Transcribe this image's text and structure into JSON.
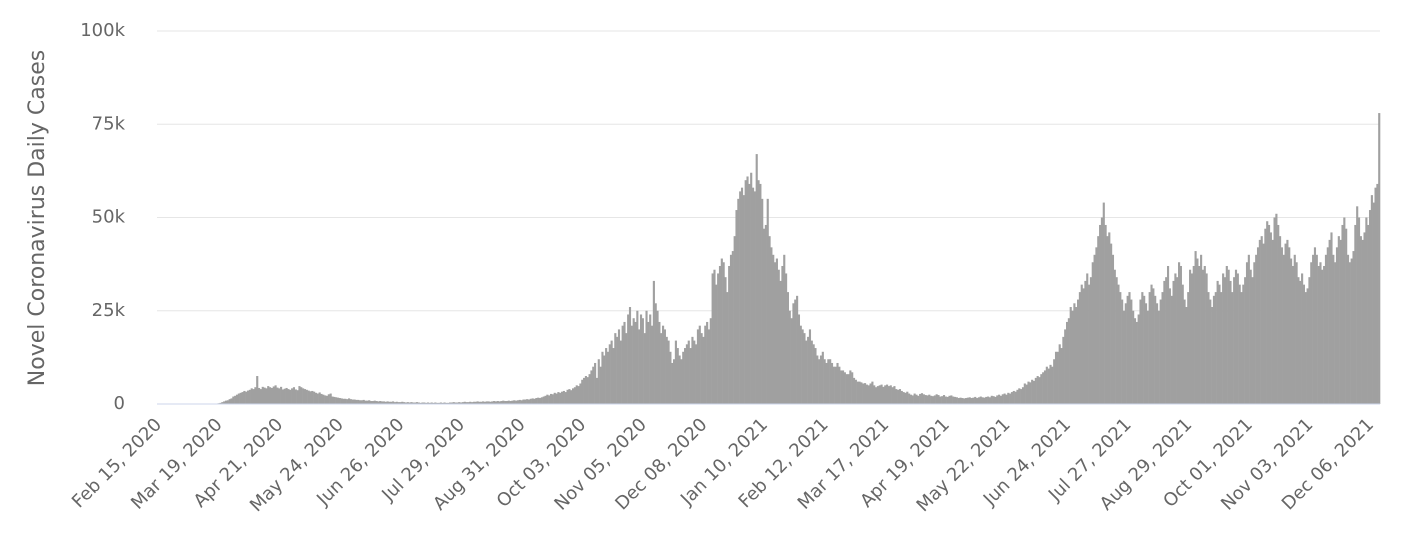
{
  "chart_data": {
    "type": "bar",
    "y_label": "Novel Coronavirus Daily Cases",
    "color": "#a0a0a0",
    "grid": true,
    "ylim": [
      0,
      100000
    ],
    "yticks": [
      0,
      {
        "value": 25000,
        "label": "25k"
      },
      {
        "value": 50000,
        "label": "50k"
      },
      {
        "value": 75000,
        "label": "75k"
      },
      {
        "value": 100000,
        "label": "100k"
      }
    ],
    "categories": [
      "Feb 15, 2020",
      null,
      null,
      null,
      null,
      null,
      null,
      null,
      null,
      null,
      null,
      null,
      null,
      null,
      null,
      null,
      null,
      null,
      null,
      null,
      null,
      null,
      null,
      null,
      null,
      null,
      null,
      null,
      null,
      null,
      null,
      null,
      null,
      "Mar 19, 2020",
      null,
      null,
      null,
      null,
      null,
      null,
      null,
      null,
      null,
      null,
      null,
      null,
      null,
      null,
      null,
      null,
      null,
      null,
      null,
      null,
      null,
      null,
      null,
      null,
      null,
      null,
      null,
      null,
      null,
      null,
      null,
      null,
      "Apr 21, 2020",
      null,
      null,
      null,
      null,
      null,
      null,
      null,
      null,
      null,
      null,
      null,
      null,
      null,
      null,
      null,
      null,
      null,
      null,
      null,
      null,
      null,
      null,
      null,
      null,
      null,
      null,
      null,
      null,
      null,
      null,
      null,
      null,
      "May 24, 2020",
      null,
      null,
      null,
      null,
      null,
      null,
      null,
      null,
      null,
      null,
      null,
      null,
      null,
      null,
      null,
      null,
      null,
      null,
      null,
      null,
      null,
      null,
      null,
      null,
      null,
      null,
      null,
      null,
      null,
      null,
      null,
      null,
      "Jun 26, 2020",
      null,
      null,
      null,
      null,
      null,
      null,
      null,
      null,
      null,
      null,
      null,
      null,
      null,
      null,
      null,
      null,
      null,
      null,
      null,
      null,
      null,
      null,
      null,
      null,
      null,
      null,
      null,
      null,
      null,
      null,
      null,
      null,
      "Jul 29, 2020",
      null,
      null,
      null,
      null,
      null,
      null,
      null,
      null,
      null,
      null,
      null,
      null,
      null,
      null,
      null,
      null,
      null,
      null,
      null,
      null,
      null,
      null,
      null,
      null,
      null,
      null,
      null,
      null,
      null,
      null,
      null,
      null,
      "Aug 31, 2020",
      null,
      null,
      null,
      null,
      null,
      null,
      null,
      null,
      null,
      null,
      null,
      null,
      null,
      null,
      null,
      null,
      null,
      null,
      null,
      null,
      null,
      null,
      null,
      null,
      null,
      null,
      null,
      null,
      null,
      null,
      null,
      null,
      "Oct 03, 2020",
      null,
      null,
      null,
      null,
      null,
      null,
      null,
      null,
      null,
      null,
      null,
      null,
      null,
      null,
      null,
      null,
      null,
      null,
      null,
      null,
      null,
      null,
      null,
      null,
      null,
      null,
      null,
      null,
      null,
      null,
      null,
      null,
      "Nov 05, 2020",
      null,
      null,
      null,
      null,
      null,
      null,
      null,
      null,
      null,
      null,
      null,
      null,
      null,
      null,
      null,
      null,
      null,
      null,
      null,
      null,
      null,
      null,
      null,
      null,
      null,
      null,
      null,
      null,
      null,
      null,
      null,
      null,
      "Dec 08, 2020",
      null,
      null,
      null,
      null,
      null,
      null,
      null,
      null,
      null,
      null,
      null,
      null,
      null,
      null,
      null,
      null,
      null,
      null,
      null,
      null,
      null,
      null,
      null,
      null,
      null,
      null,
      null,
      null,
      null,
      null,
      null,
      null,
      "Jan 10, 2021",
      null,
      null,
      null,
      null,
      null,
      null,
      null,
      null,
      null,
      null,
      null,
      null,
      null,
      null,
      null,
      null,
      null,
      null,
      null,
      null,
      null,
      null,
      null,
      null,
      null,
      null,
      null,
      null,
      null,
      null,
      null,
      null,
      "Feb 12, 2021",
      null,
      null,
      null,
      null,
      null,
      null,
      null,
      null,
      null,
      null,
      null,
      null,
      null,
      null,
      null,
      null,
      null,
      null,
      null,
      null,
      null,
      null,
      null,
      null,
      null,
      null,
      null,
      null,
      null,
      null,
      null,
      null,
      "Mar 17, 2021",
      null,
      null,
      null,
      null,
      null,
      null,
      null,
      null,
      null,
      null,
      null,
      null,
      null,
      null,
      null,
      null,
      null,
      null,
      null,
      null,
      null,
      null,
      null,
      null,
      null,
      null,
      null,
      null,
      null,
      null,
      null,
      null,
      "Apr 19, 2021",
      null,
      null,
      null,
      null,
      null,
      null,
      null,
      null,
      null,
      null,
      null,
      null,
      null,
      null,
      null,
      null,
      null,
      null,
      null,
      null,
      null,
      null,
      null,
      null,
      null,
      null,
      null,
      null,
      null,
      null,
      null,
      null,
      "May 22, 2021",
      null,
      null,
      null,
      null,
      null,
      null,
      null,
      null,
      null,
      null,
      null,
      null,
      null,
      null,
      null,
      null,
      null,
      null,
      null,
      null,
      null,
      null,
      null,
      null,
      null,
      null,
      null,
      null,
      null,
      null,
      null,
      null,
      "Jun 24, 2021",
      null,
      null,
      null,
      null,
      null,
      null,
      null,
      null,
      null,
      null,
      null,
      null,
      null,
      null,
      null,
      null,
      null,
      null,
      null,
      null,
      null,
      null,
      null,
      null,
      null,
      null,
      null,
      null,
      null,
      null,
      null,
      null,
      "Jul 27, 2021",
      null,
      null,
      null,
      null,
      null,
      null,
      null,
      null,
      null,
      null,
      null,
      null,
      null,
      null,
      null,
      null,
      null,
      null,
      null,
      null,
      null,
      null,
      null,
      null,
      null,
      null,
      null,
      null,
      null,
      null,
      null,
      null,
      "Aug 29, 2021",
      null,
      null,
      null,
      null,
      null,
      null,
      null,
      null,
      null,
      null,
      null,
      null,
      null,
      null,
      null,
      null,
      null,
      null,
      null,
      null,
      null,
      null,
      null,
      null,
      null,
      null,
      null,
      null,
      null,
      null,
      null,
      null,
      "Oct 01, 2021",
      null,
      null,
      null,
      null,
      null,
      null,
      null,
      null,
      null,
      null,
      null,
      null,
      null,
      null,
      null,
      null,
      null,
      null,
      null,
      null,
      null,
      null,
      null,
      null,
      null,
      null,
      null,
      null,
      null,
      null,
      null,
      null,
      "Nov 03, 2021",
      null,
      null,
      null,
      null,
      null,
      null,
      null,
      null,
      null,
      null,
      null,
      null,
      null,
      null,
      null,
      null,
      null,
      null,
      null,
      null,
      null,
      null,
      null,
      null,
      null,
      null,
      null,
      null,
      null,
      null,
      null,
      null,
      "Dec 06, 2021",
      null,
      null,
      null,
      null,
      null
    ],
    "values": [
      0,
      0,
      0,
      0,
      0,
      0,
      0,
      0,
      0,
      0,
      0,
      0,
      0,
      0,
      0,
      0,
      0,
      0,
      0,
      0,
      0,
      0,
      0,
      0,
      0,
      0,
      0,
      0,
      0,
      0,
      0,
      0,
      100,
      200,
      300,
      500,
      700,
      900,
      1000,
      1300,
      1500,
      2000,
      2200,
      2500,
      2800,
      3000,
      3200,
      3500,
      3300,
      3600,
      3800,
      4200,
      4000,
      4500,
      7500,
      4300,
      4000,
      4600,
      4400,
      4200,
      4800,
      4500,
      4300,
      4700,
      5000,
      4400,
      4200,
      4600,
      3900,
      4100,
      4300,
      4000,
      3800,
      4200,
      4500,
      3900,
      3700,
      4800,
      4500,
      4200,
      4000,
      3800,
      3600,
      3400,
      3500,
      3300,
      3000,
      2800,
      3100,
      2700,
      2500,
      2300,
      2200,
      2600,
      2800,
      2000,
      1900,
      1800,
      1700,
      1600,
      1500,
      1400,
      1400,
      1300,
      1500,
      1300,
      1200,
      1200,
      1100,
      1100,
      1000,
      1000,
      1100,
      900,
      900,
      1000,
      800,
      800,
      900,
      800,
      700,
      800,
      700,
      700,
      600,
      700,
      600,
      600,
      700,
      500,
      600,
      500,
      500,
      600,
      500,
      400,
      500,
      400,
      500,
      400,
      400,
      500,
      400,
      300,
      400,
      400,
      300,
      400,
      300,
      400,
      300,
      400,
      300,
      300,
      400,
      300,
      400,
      300,
      300,
      400,
      400,
      500,
      400,
      400,
      500,
      400,
      500,
      600,
      500,
      500,
      600,
      500,
      600,
      600,
      700,
      600,
      600,
      700,
      600,
      700,
      700,
      600,
      700,
      800,
      700,
      800,
      700,
      800,
      900,
      800,
      800,
      900,
      800,
      900,
      1000,
      900,
      1000,
      1100,
      1000,
      1200,
      1200,
      1300,
      1200,
      1400,
      1500,
      1400,
      1600,
      1700,
      1600,
      1800,
      2000,
      2200,
      2500,
      2300,
      2700,
      2600,
      3000,
      2800,
      3200,
      3000,
      3300,
      3500,
      3200,
      3800,
      4000,
      3700,
      4200,
      4500,
      5000,
      4800,
      5500,
      6500,
      7000,
      7500,
      7200,
      8000,
      9000,
      10000,
      11000,
      7000,
      12000,
      10000,
      14000,
      13000,
      15000,
      14000,
      16000,
      17000,
      15000,
      19000,
      18000,
      20000,
      17000,
      21000,
      22000,
      19000,
      24000,
      26000,
      21000,
      23000,
      22000,
      25000,
      20000,
      24000,
      23000,
      19000,
      25000,
      22000,
      24000,
      21000,
      33000,
      27000,
      25000,
      22000,
      19000,
      21000,
      20000,
      18000,
      17000,
      14000,
      11000,
      12000,
      17000,
      15000,
      13000,
      12000,
      14000,
      15000,
      16000,
      17000,
      15000,
      18000,
      17000,
      16000,
      20000,
      21000,
      19000,
      18000,
      21000,
      22000,
      20000,
      23000,
      35000,
      36000,
      32000,
      35000,
      37000,
      39000,
      38000,
      34000,
      30000,
      37000,
      40000,
      41000,
      45000,
      52000,
      55000,
      57000,
      58000,
      56000,
      60000,
      61000,
      59000,
      62000,
      58000,
      57000,
      67000,
      60000,
      59000,
      55000,
      47000,
      48000,
      55000,
      45000,
      42000,
      40000,
      38000,
      39000,
      36000,
      33000,
      37000,
      40000,
      35000,
      30000,
      25000,
      23000,
      27000,
      28000,
      29000,
      24000,
      21000,
      20000,
      19000,
      17000,
      18000,
      20000,
      17000,
      16000,
      15000,
      13000,
      12000,
      13000,
      14000,
      12000,
      11000,
      12000,
      12000,
      11000,
      10000,
      10000,
      11000,
      10000,
      9000,
      9000,
      8500,
      8000,
      8000,
      9000,
      8500,
      7000,
      6500,
      6000,
      6000,
      5800,
      5500,
      5600,
      5200,
      5000,
      5500,
      6000,
      5000,
      4500,
      4800,
      5000,
      5200,
      4600,
      5000,
      5200,
      4800,
      5000,
      4500,
      4800,
      4000,
      3800,
      4000,
      3500,
      3200,
      3000,
      3300,
      2800,
      2500,
      2300,
      2800,
      2500,
      2200,
      2700,
      2900,
      2600,
      2400,
      2300,
      2500,
      2200,
      2100,
      2300,
      2600,
      2400,
      2000,
      2100,
      2400,
      2000,
      1900,
      2200,
      2300,
      2000,
      1900,
      1800,
      1600,
      1700,
      1600,
      1500,
      1600,
      1700,
      1800,
      1600,
      1700,
      1900,
      1600,
      1800,
      2000,
      1800,
      1700,
      1900,
      2000,
      1800,
      2200,
      2100,
      1900,
      2300,
      2500,
      2200,
      2600,
      2800,
      2500,
      3000,
      2800,
      3200,
      3500,
      3300,
      3800,
      4200,
      4000,
      4500,
      5500,
      5200,
      6000,
      5800,
      6500,
      6200,
      7000,
      7500,
      7200,
      8000,
      8500,
      9000,
      10000,
      9500,
      10500,
      10000,
      12000,
      14000,
      14000,
      16000,
      15000,
      18000,
      20000,
      22000,
      23000,
      26000,
      25000,
      27000,
      26000,
      28000,
      30000,
      32000,
      31000,
      33000,
      35000,
      32000,
      34000,
      38000,
      40000,
      42000,
      45000,
      48000,
      50000,
      54000,
      48000,
      45000,
      46000,
      43000,
      40000,
      36000,
      34000,
      32000,
      30000,
      28000,
      25000,
      27000,
      29000,
      30000,
      28000,
      25000,
      23000,
      22000,
      24000,
      28000,
      30000,
      29000,
      27000,
      25000,
      30000,
      32000,
      31000,
      29000,
      27000,
      25000,
      28000,
      30000,
      33000,
      34000,
      37000,
      31000,
      29000,
      33000,
      35000,
      34000,
      38000,
      37000,
      32000,
      28000,
      26000,
      30000,
      36000,
      35000,
      37000,
      41000,
      39000,
      37000,
      40000,
      36000,
      37000,
      35000,
      30000,
      28000,
      26000,
      29000,
      30000,
      33000,
      32000,
      30000,
      35000,
      34000,
      37000,
      36000,
      33000,
      30000,
      34000,
      36000,
      35000,
      32000,
      30000,
      32000,
      34000,
      38000,
      40000,
      36000,
      34000,
      38000,
      40000,
      42000,
      44000,
      45000,
      43000,
      47000,
      49000,
      48000,
      46000,
      44000,
      50000,
      51000,
      48000,
      45000,
      42000,
      40000,
      43000,
      44000,
      42000,
      39000,
      37000,
      40000,
      38000,
      34000,
      33000,
      35000,
      32000,
      30000,
      31000,
      34000,
      38000,
      40000,
      42000,
      40000,
      37000,
      38000,
      36000,
      37000,
      40000,
      42000,
      44000,
      46000,
      40000,
      38000,
      42000,
      45000,
      44000,
      48000,
      50000,
      47000,
      40000,
      38000,
      39000,
      41000,
      48000,
      53000,
      50000,
      45000,
      44000,
      46000,
      50000,
      48000,
      52000,
      56000,
      54000,
      58000,
      59000,
      78000
    ]
  }
}
